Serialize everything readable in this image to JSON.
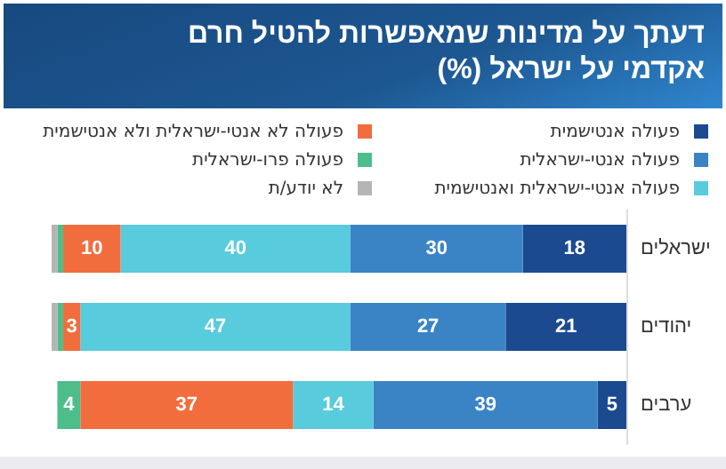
{
  "chart_data": {
    "type": "bar",
    "orientation": "horizontal",
    "stacked": true,
    "title": "דעתך על מדינות שמאפשרות להטיל חרם אקדמי על ישראל (%)",
    "categories": [
      "ישראלים",
      "יהודים",
      "ערבים"
    ],
    "series": [
      {
        "name": "פעולה אנטישמית",
        "color": "#1b4a90",
        "values": [
          18,
          21,
          5
        ],
        "value_labels": [
          "18",
          "21",
          "5"
        ]
      },
      {
        "name": "פעולה אנטי-ישראלית",
        "color": "#3a84c6",
        "values": [
          30,
          27,
          39
        ],
        "value_labels": [
          "30",
          "27",
          "39"
        ]
      },
      {
        "name": "פעולה אנטי-ישראלית ואנטישמית",
        "color": "#58cbdc",
        "values": [
          40,
          47,
          14
        ],
        "value_labels": [
          "40",
          "47",
          "14"
        ]
      },
      {
        "name": "פעולה לא אנטי-ישראלית ולא אנטישמית",
        "color": "#f26d3d",
        "values": [
          10,
          3,
          37
        ],
        "value_labels": [
          "10",
          "3",
          "37"
        ]
      },
      {
        "name": "פעולה פרו-ישראלית",
        "color": "#4dbd8a",
        "values": [
          1,
          1,
          4
        ],
        "value_labels": [
          null,
          null,
          "4"
        ]
      },
      {
        "name": "לא יודע/ת",
        "color": "#b5b5b5",
        "values": [
          1,
          1,
          null
        ],
        "value_labels": [
          null,
          null,
          null
        ]
      }
    ],
    "legend": "top",
    "grid": false
  }
}
